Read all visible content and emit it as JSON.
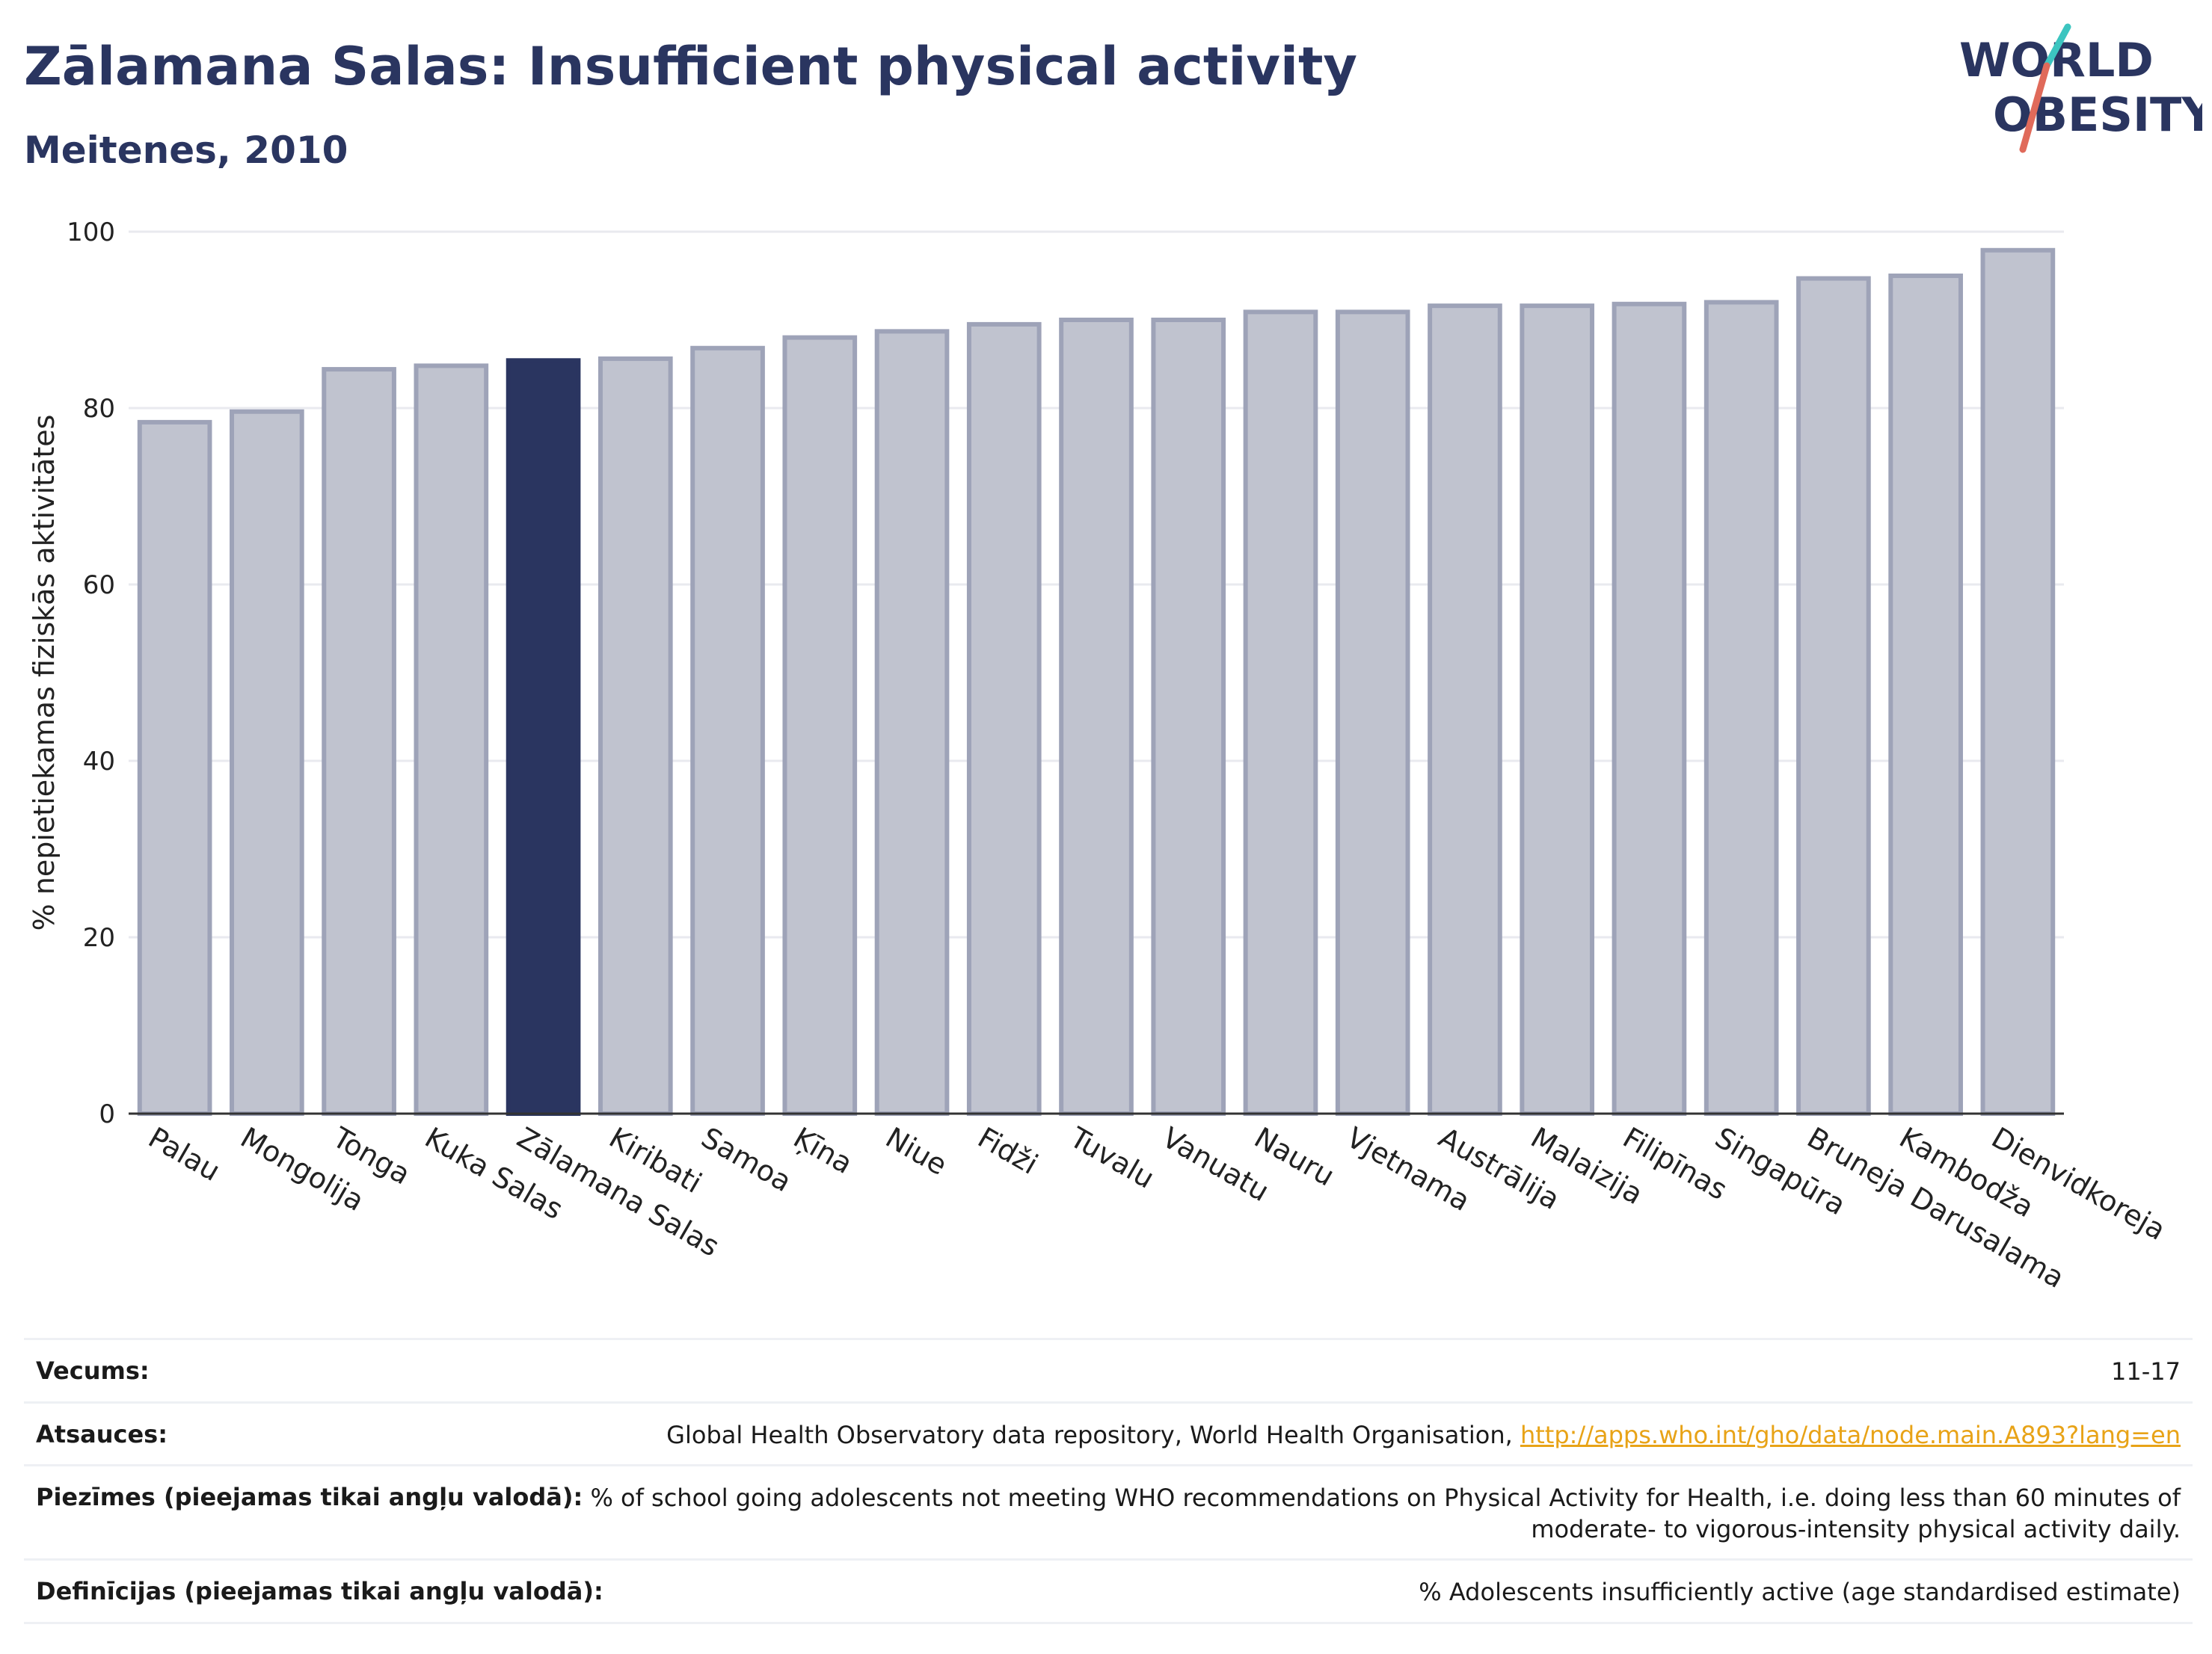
{
  "header": {
    "title": "Zālamana Salas: Insufficient physical activity",
    "subtitle": "Meitenes, 2010"
  },
  "logo": {
    "line1": "WORLD",
    "line2": "OBESITY",
    "text_color": "#2a3560",
    "slash_colors": [
      "#e06a5a",
      "#3cc5c0"
    ]
  },
  "chart_data": {
    "type": "bar",
    "title": "",
    "xlabel": "",
    "ylabel": "% nepietiekamas fiziskās aktivitātes",
    "ylim": [
      0,
      100
    ],
    "yticks": [
      0,
      20,
      40,
      60,
      80,
      100
    ],
    "grid": true,
    "categories": [
      "Palau",
      "Mongolija",
      "Tonga",
      "Kuka Salas",
      "Zālamana Salas",
      "Kiribati",
      "Samoa",
      "Ķīna",
      "Niue",
      "Fidži",
      "Tuvalu",
      "Vanuatu",
      "Nauru",
      "Vjetnama",
      "Austrālija",
      "Malaizija",
      "Filipīnas",
      "Singapūra",
      "Bruneja Darusalama",
      "Kambodža",
      "Dienvidkoreja"
    ],
    "values": [
      78.4,
      79.6,
      84.4,
      84.8,
      85.4,
      85.6,
      86.8,
      88.0,
      88.7,
      89.5,
      90.0,
      90.0,
      90.9,
      90.9,
      91.6,
      91.6,
      91.8,
      92.0,
      94.7,
      95.0,
      97.9
    ],
    "highlight": "Zālamana Salas",
    "colors": {
      "bar": "#c0c3cf",
      "bar_border": "#9ea3b8",
      "highlight": "#2a3560",
      "grid": "#e9eaef",
      "axis": "#333333"
    }
  },
  "footer": {
    "rows": [
      {
        "label": "Vecums:",
        "value": "11-17"
      },
      {
        "label": "Atsauces:",
        "value": "Global Health Observatory data repository, World Health Organisation, ",
        "link": "http://apps.who.int/gho/data/node.main.A893?lang=en"
      },
      {
        "label": "Piezīmes (pieejamas tikai angļu valodā):",
        "value": "% of school going adolescents not meeting WHO recommendations on Physical Activity for Health, i.e. doing less than 60 minutes of moderate- to vigorous-intensity physical activity daily."
      },
      {
        "label": "Definīcijas (pieejamas tikai angļu valodā):",
        "value": "% Adolescents insufficiently active (age standardised estimate)"
      }
    ]
  }
}
